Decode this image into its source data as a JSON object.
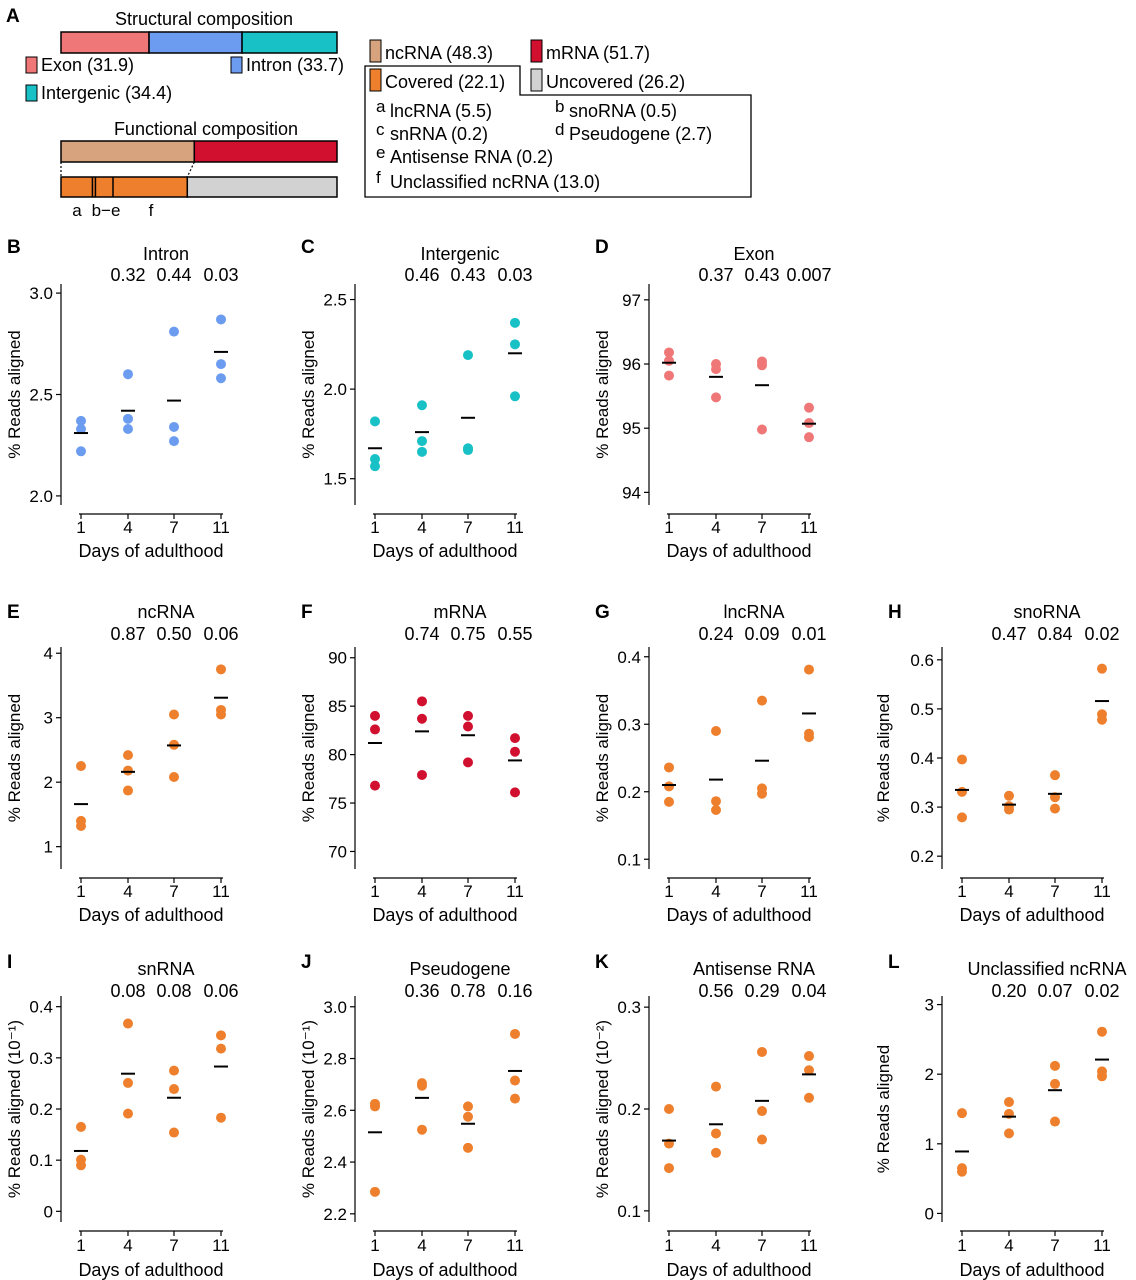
{
  "panel_a": {
    "label": "A",
    "structural_title": "Structural composition",
    "functional_title": "Functional composition",
    "structural_segments": [
      {
        "key": "exon",
        "label": "Exon (31.9)",
        "value": 31.9,
        "color": "#f07777"
      },
      {
        "key": "intron",
        "label": "Intron (33.7)",
        "value": 33.7,
        "color": "#6b9cf0"
      },
      {
        "key": "intergenic",
        "label": "Intergenic (34.4)",
        "value": 34.4,
        "color": "#17c1c6"
      }
    ],
    "functional_segments": [
      {
        "key": "ncrna",
        "label": "ncRNA (48.3)",
        "value": 48.3,
        "color": "#d6a37e"
      },
      {
        "key": "mrna",
        "label": "mRNA (51.7)",
        "value": 51.7,
        "color": "#d0102e"
      }
    ],
    "nc_segments": [
      {
        "key": "covered",
        "label": "Covered (22.1)",
        "value": 22.1,
        "color": "#ee7f2c"
      },
      {
        "key": "uncovered",
        "label": "Uncovered (26.2)",
        "value": 26.2,
        "color": "#d2d2d2"
      }
    ],
    "covered_breakdown": [
      {
        "letter": "a",
        "label": "lncRNA (5.5)",
        "value": 5.5
      },
      {
        "letter": "b",
        "label": "snoRNA (0.5)",
        "value": 0.5
      },
      {
        "letter": "c",
        "label": "snRNA (0.2)",
        "value": 0.2
      },
      {
        "letter": "d",
        "label": "Pseudogene (2.7)",
        "value": 2.7
      },
      {
        "letter": "e",
        "label": "Antisense RNA (0.2)",
        "value": 0.2
      },
      {
        "letter": "f",
        "label": "Unclassified ncRNA (13.0)",
        "value": 13.0
      }
    ],
    "tick_labels": {
      "a": "a",
      "be": "b−e",
      "f": "f"
    }
  },
  "chart_data": [
    {
      "panel": "B",
      "type": "scatter",
      "title": "Intron",
      "xlabel": "Days of adulthood",
      "ylabel": "% Reads aligned",
      "categories": [
        "1",
        "4",
        "7",
        "11"
      ],
      "ylim": [
        1.97,
        3.03
      ],
      "yticks": [
        2.0,
        2.5,
        3.0
      ],
      "ytick_labels": [
        "2.0",
        "2.5",
        "3.0"
      ],
      "color": "#6b9cf0",
      "p_values": [
        "0.32",
        "0.44",
        "0.03"
      ],
      "points": [
        [
          2.37,
          2.33,
          2.22
        ],
        [
          2.6,
          2.38,
          2.33
        ],
        [
          2.81,
          2.34,
          2.27
        ],
        [
          2.87,
          2.65,
          2.58
        ]
      ],
      "means": [
        2.31,
        2.42,
        2.47,
        2.71
      ]
    },
    {
      "panel": "C",
      "type": "scatter",
      "title": "Intergenic",
      "xlabel": "Days of adulthood",
      "ylabel": "% Reads aligned",
      "categories": [
        "1",
        "4",
        "7",
        "11"
      ],
      "ylim": [
        1.37,
        2.57
      ],
      "yticks": [
        1.5,
        2.0,
        2.5
      ],
      "ytick_labels": [
        "1.5",
        "2.0",
        "2.5"
      ],
      "color": "#17c1c6",
      "p_values": [
        "0.46",
        "0.43",
        "0.03"
      ],
      "points": [
        [
          1.82,
          1.61,
          1.57
        ],
        [
          1.91,
          1.71,
          1.65
        ],
        [
          2.19,
          1.67,
          1.66
        ],
        [
          2.37,
          2.25,
          1.96
        ]
      ],
      "means": [
        1.67,
        1.76,
        1.84,
        2.2
      ]
    },
    {
      "panel": "D",
      "type": "scatter",
      "title": "Exon",
      "xlabel": "Days of adulthood",
      "ylabel": "% Reads aligned",
      "categories": [
        "1",
        "4",
        "7",
        "11"
      ],
      "ylim": [
        93.85,
        97.2
      ],
      "yticks": [
        94,
        95,
        96,
        97
      ],
      "ytick_labels": [
        "94",
        "95",
        "96",
        "97"
      ],
      "color": "#f07777",
      "p_values": [
        "0.37",
        "0.43",
        "0.007"
      ],
      "points": [
        [
          96.18,
          96.05,
          95.82
        ],
        [
          96.0,
          95.92,
          95.48
        ],
        [
          96.04,
          95.98,
          94.98
        ],
        [
          95.32,
          95.08,
          94.86
        ]
      ],
      "means": [
        96.02,
        95.8,
        95.67,
        95.07
      ]
    },
    {
      "panel": "E",
      "type": "scatter",
      "title": "ncRNA",
      "xlabel": "Days of adulthood",
      "ylabel": "% Reads aligned",
      "categories": [
        "1",
        "4",
        "7",
        "11"
      ],
      "ylim": [
        0.7,
        4.05
      ],
      "yticks": [
        1,
        2,
        3,
        4
      ],
      "ytick_labels": [
        "1",
        "2",
        "3",
        "4"
      ],
      "color": "#ee7f2c",
      "p_values": [
        "0.87",
        "0.50",
        "0.06"
      ],
      "points": [
        [
          2.25,
          1.4,
          1.32
        ],
        [
          2.42,
          2.18,
          1.87
        ],
        [
          3.05,
          2.58,
          2.08
        ],
        [
          3.75,
          3.12,
          3.05
        ]
      ],
      "means": [
        1.66,
        2.16,
        2.57,
        3.31
      ]
    },
    {
      "panel": "F",
      "type": "scatter",
      "title": "mRNA",
      "xlabel": "Days of adulthood",
      "ylabel": "% Reads aligned",
      "categories": [
        "1",
        "4",
        "7",
        "11"
      ],
      "ylim": [
        68.5,
        90.8
      ],
      "yticks": [
        70,
        75,
        80,
        85,
        90
      ],
      "ytick_labels": [
        "70",
        "75",
        "80",
        "85",
        "90"
      ],
      "color": "#d0102e",
      "p_values": [
        "0.74",
        "0.75",
        "0.55"
      ],
      "points": [
        [
          84.0,
          82.6,
          76.8
        ],
        [
          85.5,
          83.7,
          77.9
        ],
        [
          84.0,
          82.9,
          79.2
        ],
        [
          81.7,
          80.3,
          76.1
        ]
      ],
      "means": [
        81.2,
        82.4,
        82.0,
        79.4
      ]
    },
    {
      "panel": "G",
      "type": "scatter",
      "title": "lncRNA",
      "xlabel": "Days of adulthood",
      "ylabel": "% Reads aligned",
      "categories": [
        "1",
        "4",
        "7",
        "11"
      ],
      "ylim": [
        0.09,
        0.41
      ],
      "yticks": [
        0.1,
        0.2,
        0.3,
        0.4
      ],
      "ytick_labels": [
        "0.1",
        "0.2",
        "0.3",
        "0.4"
      ],
      "color": "#ee7f2c",
      "p_values": [
        "0.24",
        "0.09",
        "0.01"
      ],
      "points": [
        [
          0.236,
          0.208,
          0.185
        ],
        [
          0.29,
          0.186,
          0.173
        ],
        [
          0.335,
          0.205,
          0.197
        ],
        [
          0.381,
          0.286,
          0.281
        ]
      ],
      "means": [
        0.21,
        0.218,
        0.246,
        0.316
      ]
    },
    {
      "panel": "H",
      "type": "scatter",
      "title": "snoRNA",
      "xlabel": "Days of adulthood",
      "ylabel": "% Reads aligned",
      "categories": [
        "1",
        "4",
        "7",
        "11"
      ],
      "ylim": [
        0.18,
        0.62
      ],
      "yticks": [
        0.2,
        0.3,
        0.4,
        0.5,
        0.6
      ],
      "ytick_labels": [
        "0.2",
        "0.3",
        "0.4",
        "0.5",
        "0.6"
      ],
      "color": "#ee7f2c",
      "p_values": [
        "0.47",
        "0.84",
        "0.02"
      ],
      "points": [
        [
          0.397,
          0.331,
          0.279
        ],
        [
          0.323,
          0.302,
          0.295
        ],
        [
          0.365,
          0.32,
          0.297
        ],
        [
          0.582,
          0.489,
          0.478
        ]
      ],
      "means": [
        0.335,
        0.305,
        0.327,
        0.516
      ]
    },
    {
      "panel": "I",
      "type": "scatter",
      "title": "snRNA",
      "xlabel": "Days of adulthood",
      "ylabel": "% Reads aligned (10⁻¹)",
      "categories": [
        "1",
        "4",
        "7",
        "11"
      ],
      "ylim": [
        -0.015,
        0.415
      ],
      "yticks": [
        0.0,
        0.1,
        0.2,
        0.3,
        0.4
      ],
      "ytick_labels": [
        "0",
        "0.1",
        "0.2",
        "0.3",
        "0.4"
      ],
      "color": "#ee7f2c",
      "p_values": [
        "0.08",
        "0.08",
        "0.06"
      ],
      "points": [
        [
          0.165,
          0.101,
          0.09
        ],
        [
          0.367,
          0.251,
          0.191
        ],
        [
          0.275,
          0.239,
          0.154
        ],
        [
          0.344,
          0.318,
          0.183
        ]
      ],
      "means": [
        0.118,
        0.269,
        0.222,
        0.283
      ]
    },
    {
      "panel": "J",
      "type": "scatter",
      "title": "Pseudogene",
      "xlabel": "Days of adulthood",
      "ylabel": "% Reads aligned (10⁻¹)",
      "categories": [
        "1",
        "4",
        "7",
        "11"
      ],
      "ylim": [
        2.18,
        3.03
      ],
      "yticks": [
        2.2,
        2.4,
        2.6,
        2.8,
        3.0
      ],
      "ytick_labels": [
        "2.2",
        "2.4",
        "2.6",
        "2.8",
        "3.0"
      ],
      "color": "#ee7f2c",
      "p_values": [
        "0.36",
        "0.78",
        "0.16"
      ],
      "points": [
        [
          2.625,
          2.615,
          2.285
        ],
        [
          2.705,
          2.695,
          2.525
        ],
        [
          2.615,
          2.575,
          2.455
        ],
        [
          2.895,
          2.715,
          2.645
        ]
      ],
      "means": [
        2.515,
        2.648,
        2.548,
        2.752
      ]
    },
    {
      "panel": "K",
      "type": "scatter",
      "title": "Antisense RNA",
      "xlabel": "Days of adulthood",
      "ylabel": "% Reads aligned (10⁻²)",
      "categories": [
        "1",
        "4",
        "7",
        "11"
      ],
      "ylim": [
        0.092,
        0.308
      ],
      "yticks": [
        0.1,
        0.2,
        0.3
      ],
      "ytick_labels": [
        "0.1",
        "0.2",
        "0.3"
      ],
      "color": "#ee7f2c",
      "p_values": [
        "0.56",
        "0.29",
        "0.04"
      ],
      "points": [
        [
          0.2,
          0.166,
          0.142
        ],
        [
          0.222,
          0.176,
          0.157
        ],
        [
          0.256,
          0.198,
          0.17
        ],
        [
          0.252,
          0.238,
          0.211
        ]
      ],
      "means": [
        0.169,
        0.185,
        0.208,
        0.234
      ]
    },
    {
      "panel": "L",
      "type": "scatter",
      "title": "Unclassified ncRNA",
      "xlabel": "Days of adulthood",
      "ylabel": "% Reads aligned",
      "categories": [
        "1",
        "4",
        "7",
        "11"
      ],
      "ylim": [
        -0.08,
        3.08
      ],
      "yticks": [
        0,
        1,
        2,
        3
      ],
      "ytick_labels": [
        "0",
        "1",
        "2",
        "3"
      ],
      "color": "#ee7f2c",
      "p_values": [
        "0.20",
        "0.07",
        "0.02"
      ],
      "points": [
        [
          1.44,
          0.65,
          0.6
        ],
        [
          1.6,
          1.43,
          1.15
        ],
        [
          2.12,
          1.86,
          1.32
        ],
        [
          2.61,
          2.04,
          1.97
        ]
      ],
      "means": [
        0.89,
        1.39,
        1.77,
        2.21
      ]
    }
  ]
}
